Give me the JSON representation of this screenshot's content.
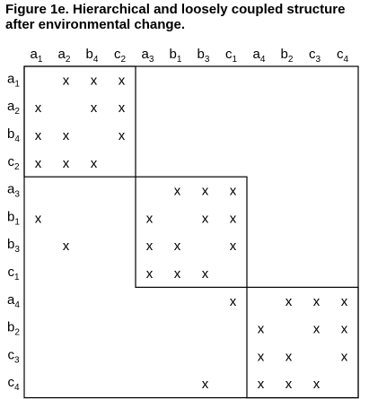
{
  "figure": {
    "title_line1": "Figure 1e. Hierarchical and loosely coupled structure",
    "title_line2": "after environmental change."
  },
  "matrix": {
    "columns": [
      {
        "base": "a",
        "sub": "1"
      },
      {
        "base": "a",
        "sub": "2"
      },
      {
        "base": "b",
        "sub": "4"
      },
      {
        "base": "c",
        "sub": "2"
      },
      {
        "base": "a",
        "sub": "3"
      },
      {
        "base": "b",
        "sub": "1"
      },
      {
        "base": "b",
        "sub": "3"
      },
      {
        "base": "c",
        "sub": "1"
      },
      {
        "base": "a",
        "sub": "4"
      },
      {
        "base": "b",
        "sub": "2"
      },
      {
        "base": "c",
        "sub": "3"
      },
      {
        "base": "c",
        "sub": "4"
      }
    ],
    "rows": [
      {
        "base": "a",
        "sub": "1"
      },
      {
        "base": "a",
        "sub": "2"
      },
      {
        "base": "b",
        "sub": "4"
      },
      {
        "base": "c",
        "sub": "2"
      },
      {
        "base": "a",
        "sub": "3"
      },
      {
        "base": "b",
        "sub": "1"
      },
      {
        "base": "b",
        "sub": "3"
      },
      {
        "base": "c",
        "sub": "1"
      },
      {
        "base": "a",
        "sub": "4"
      },
      {
        "base": "b",
        "sub": "2"
      },
      {
        "base": "c",
        "sub": "3"
      },
      {
        "base": "c",
        "sub": "4"
      }
    ],
    "mark_symbol": "x",
    "cells": [
      [
        0,
        1,
        1,
        1,
        0,
        0,
        0,
        0,
        0,
        0,
        0,
        0
      ],
      [
        1,
        0,
        1,
        1,
        0,
        0,
        0,
        0,
        0,
        0,
        0,
        0
      ],
      [
        1,
        1,
        0,
        1,
        0,
        0,
        0,
        0,
        0,
        0,
        0,
        0
      ],
      [
        1,
        1,
        1,
        0,
        0,
        0,
        0,
        0,
        0,
        0,
        0,
        0
      ],
      [
        0,
        0,
        0,
        0,
        0,
        1,
        1,
        1,
        0,
        0,
        0,
        0
      ],
      [
        1,
        0,
        0,
        0,
        1,
        0,
        1,
        1,
        0,
        0,
        0,
        0
      ],
      [
        0,
        1,
        0,
        0,
        1,
        1,
        0,
        1,
        0,
        0,
        0,
        0
      ],
      [
        0,
        0,
        0,
        0,
        1,
        1,
        1,
        0,
        0,
        0,
        0,
        0
      ],
      [
        0,
        0,
        0,
        0,
        0,
        0,
        0,
        1,
        0,
        1,
        1,
        1
      ],
      [
        0,
        0,
        0,
        0,
        0,
        0,
        0,
        0,
        1,
        0,
        1,
        1
      ],
      [
        0,
        0,
        0,
        0,
        0,
        0,
        0,
        0,
        1,
        1,
        0,
        1
      ],
      [
        0,
        0,
        0,
        0,
        0,
        0,
        1,
        0,
        1,
        1,
        1,
        0
      ]
    ],
    "blocks": [
      [
        0,
        3
      ],
      [
        4,
        7
      ],
      [
        8,
        11
      ]
    ]
  }
}
